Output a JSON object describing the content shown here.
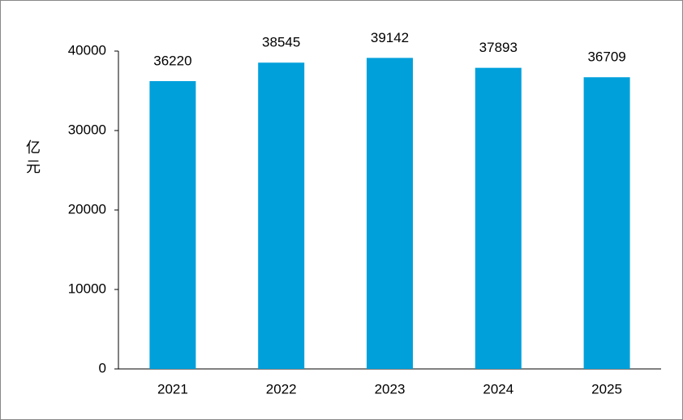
{
  "chart_data": {
    "type": "bar",
    "y_label": "亿元",
    "categories": [
      "2021",
      "2022",
      "2023",
      "2024",
      "2025"
    ],
    "values": [
      36220,
      38545,
      39142,
      37893,
      36709
    ],
    "color": "#00a0db",
    "ylim": [
      0,
      40000
    ],
    "yticks": [
      0,
      10000,
      20000,
      30000,
      40000
    ],
    "grid": false,
    "data_labels": true
  }
}
